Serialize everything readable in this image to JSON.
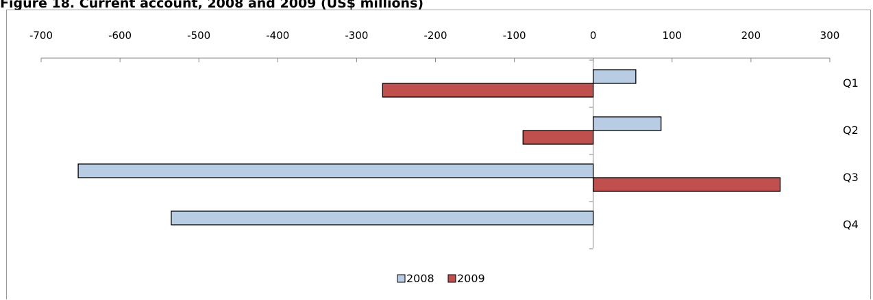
{
  "chart_data": {
    "type": "bar",
    "orientation": "horizontal",
    "title": "Figure 18. Current account, 2008 and 2009 (US$ millions)",
    "categories": [
      "Q1",
      "Q2",
      "Q3",
      "Q4"
    ],
    "series": [
      {
        "name": "2008",
        "values": [
          54,
          86,
          -653,
          -535
        ],
        "color": "#b8cce4"
      },
      {
        "name": "2009",
        "values": [
          -267,
          -89,
          237,
          null
        ],
        "color": "#c0504d"
      }
    ],
    "xlim": [
      -700,
      300
    ],
    "xticks": [
      "-700",
      "-600",
      "-500",
      "-400",
      "-300",
      "-200",
      "-100",
      "0",
      "100",
      "200",
      "300"
    ],
    "xtick_values": [
      -700,
      -600,
      -500,
      -400,
      -300,
      -200,
      -100,
      0,
      100,
      200,
      300
    ],
    "x_axis_position": "top",
    "grid": false,
    "legend_position": "bottom"
  }
}
